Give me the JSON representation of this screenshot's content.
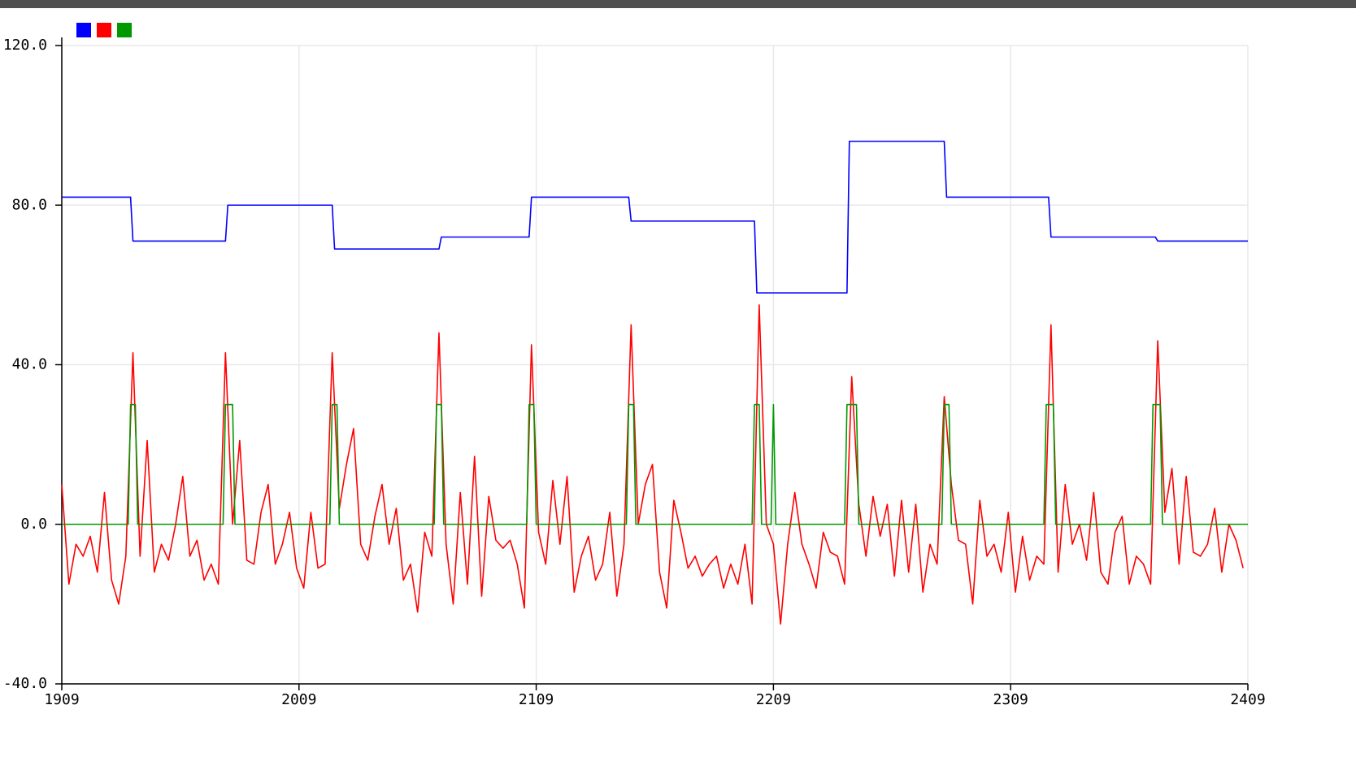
{
  "chart_data": {
    "type": "line",
    "xlim": [
      1909,
      2409
    ],
    "ylim": [
      -40,
      120
    ],
    "xticks": [
      1909,
      2009,
      2109,
      2209,
      2309,
      2409
    ],
    "yticks": [
      {
        "value": -40,
        "label": "-40.0"
      },
      {
        "value": 0,
        "label": "0.0"
      },
      {
        "value": 40,
        "label": "40.0"
      },
      {
        "value": 80,
        "label": "80.0"
      },
      {
        "value": 120,
        "label": "120.0"
      }
    ],
    "grid": true,
    "legend": "top-left",
    "series": [
      {
        "color": "#0000ff",
        "x": [
          1909,
          1938,
          1939,
          1978,
          1979,
          2023,
          2024,
          2068,
          2069,
          2106,
          2107,
          2148,
          2149,
          2201,
          2202,
          2240,
          2241,
          2281,
          2282,
          2325,
          2326,
          2370,
          2371,
          2409
        ],
        "values": [
          82,
          82,
          71,
          71,
          80,
          80,
          69,
          69,
          72,
          72,
          82,
          82,
          76,
          76,
          58,
          58,
          96,
          96,
          82,
          82,
          72,
          72,
          71,
          71
        ]
      },
      {
        "color": "#ff0000",
        "x": [
          1909,
          1912,
          1915,
          1918,
          1921,
          1924,
          1927,
          1930,
          1933,
          1936,
          1939,
          1942,
          1945,
          1948,
          1951,
          1954,
          1957,
          1960,
          1963,
          1966,
          1969,
          1972,
          1975,
          1978,
          1981,
          1984,
          1987,
          1990,
          1993,
          1996,
          1999,
          2002,
          2005,
          2008,
          2011,
          2014,
          2017,
          2020,
          2023,
          2026,
          2029,
          2032,
          2035,
          2038,
          2041,
          2044,
          2047,
          2050,
          2053,
          2056,
          2059,
          2062,
          2065,
          2068,
          2071,
          2074,
          2077,
          2080,
          2083,
          2086,
          2089,
          2092,
          2095,
          2098,
          2101,
          2104,
          2107,
          2110,
          2113,
          2116,
          2119,
          2122,
          2125,
          2128,
          2131,
          2134,
          2137,
          2140,
          2143,
          2146,
          2149,
          2152,
          2155,
          2158,
          2161,
          2164,
          2167,
          2170,
          2173,
          2176,
          2179,
          2182,
          2185,
          2188,
          2191,
          2194,
          2197,
          2200,
          2203,
          2206,
          2209,
          2212,
          2215,
          2218,
          2221,
          2224,
          2227,
          2230,
          2233,
          2236,
          2239,
          2242,
          2245,
          2248,
          2251,
          2254,
          2257,
          2260,
          2263,
          2266,
          2269,
          2272,
          2275,
          2278,
          2281,
          2284,
          2287,
          2290,
          2293,
          2296,
          2299,
          2302,
          2305,
          2308,
          2311,
          2314,
          2317,
          2320,
          2323,
          2326,
          2329,
          2332,
          2335,
          2338,
          2341,
          2344,
          2347,
          2350,
          2353,
          2356,
          2359,
          2362,
          2365,
          2368,
          2371,
          2374,
          2377,
          2380,
          2383,
          2386,
          2389,
          2392,
          2395,
          2398,
          2401,
          2404,
          2407
        ],
        "values": [
          10,
          -15,
          -5,
          -8,
          -3,
          -12,
          8,
          -14,
          -20,
          -8,
          43,
          -8,
          21,
          -12,
          -5,
          -9,
          0,
          12,
          -8,
          -4,
          -14,
          -10,
          -15,
          43,
          0,
          21,
          -9,
          -10,
          3,
          10,
          -10,
          -5,
          3,
          -11,
          -16,
          3,
          -11,
          -10,
          43,
          4,
          15,
          24,
          -5,
          -9,
          2,
          10,
          -5,
          4,
          -14,
          -10,
          -22,
          -2,
          -8,
          48,
          -5,
          -20,
          8,
          -15,
          17,
          -18,
          7,
          -4,
          -6,
          -4,
          -10,
          -21,
          45,
          -2,
          -10,
          11,
          -5,
          12,
          -17,
          -8,
          -3,
          -14,
          -10,
          3,
          -18,
          -5,
          50,
          0,
          10,
          15,
          -12,
          -21,
          6,
          -2,
          -11,
          -8,
          -13,
          -10,
          -8,
          -16,
          -10,
          -15,
          -5,
          -20,
          55,
          0,
          -5,
          -25,
          -5,
          8,
          -5,
          -10,
          -16,
          -2,
          -7,
          -8,
          -15,
          37,
          5,
          -8,
          7,
          -3,
          5,
          -13,
          6,
          -12,
          5,
          -17,
          -5,
          -10,
          32,
          10,
          -4,
          -5,
          -20,
          6,
          -8,
          -5,
          -12,
          3,
          -17,
          -3,
          -14,
          -8,
          -10,
          50,
          -12,
          10,
          -5,
          0,
          -9,
          8,
          -12,
          -15,
          -2,
          2,
          -15,
          -8,
          -10,
          -15,
          46,
          3,
          14,
          -10,
          12,
          -7,
          -8,
          -5,
          4,
          -12,
          0,
          -4,
          -11
        ]
      },
      {
        "color": "#009900",
        "x": [
          1909,
          1937,
          1938,
          1940,
          1941,
          1977,
          1978,
          1981,
          1982,
          2022,
          2023,
          2025,
          2026,
          2066,
          2067,
          2069,
          2070,
          2105,
          2106,
          2108,
          2109,
          2147,
          2148,
          2150,
          2151,
          2200,
          2201,
          2203,
          2204,
          2208,
          2209,
          2210,
          2239,
          2240,
          2244,
          2245,
          2280,
          2281,
          2283,
          2284,
          2323,
          2324,
          2327,
          2328,
          2368,
          2369,
          2372,
          2373,
          2409
        ],
        "values": [
          0,
          0,
          30,
          30,
          0,
          0,
          30,
          30,
          0,
          0,
          30,
          30,
          0,
          0,
          30,
          30,
          0,
          0,
          30,
          30,
          0,
          0,
          30,
          30,
          0,
          0,
          30,
          30,
          0,
          0,
          30,
          0,
          0,
          30,
          30,
          0,
          0,
          30,
          30,
          0,
          0,
          30,
          30,
          0,
          0,
          30,
          30,
          0,
          0
        ]
      }
    ]
  }
}
